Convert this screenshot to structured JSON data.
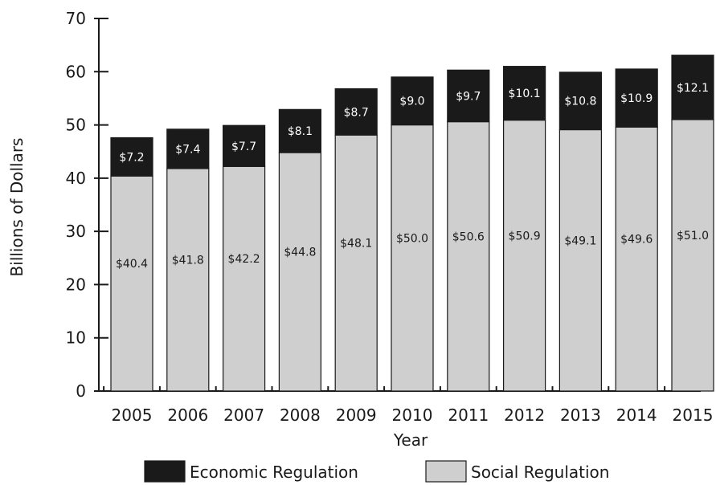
{
  "chart_data": {
    "type": "bar",
    "stacked": true,
    "categories": [
      "2005",
      "2006",
      "2007",
      "2008",
      "2009",
      "2010",
      "2011",
      "2012",
      "2013",
      "2014",
      "2015"
    ],
    "series": [
      {
        "name": "Social Regulation",
        "color": "#cfcfcf",
        "values": [
          40.4,
          41.8,
          42.2,
          44.8,
          48.1,
          50.0,
          50.6,
          50.9,
          49.1,
          49.6,
          51.0
        ],
        "labels": [
          "$40.4",
          "$41.8",
          "$42.2",
          "$44.8",
          "$48.1",
          "$50.0",
          "$50.6",
          "$50.9",
          "$49.1",
          "$49.6",
          "$51.0"
        ]
      },
      {
        "name": "Economic Regulation",
        "color": "#1a1a1a",
        "values": [
          7.2,
          7.4,
          7.7,
          8.1,
          8.7,
          9.0,
          9.7,
          10.1,
          10.8,
          10.9,
          12.1
        ],
        "labels": [
          "$7.2",
          "$7.4",
          "$7.7",
          "$8.1",
          "$8.7",
          "$9.0",
          "$9.7",
          "$10.1",
          "$10.8",
          "$10.9",
          "$12.1"
        ]
      }
    ],
    "xlabel": "Year",
    "ylabel": "Billions of Dollars",
    "ylim": [
      0,
      70
    ],
    "yticks": [
      "0",
      "10",
      "20",
      "30",
      "40",
      "50",
      "60",
      "70"
    ],
    "grid": false,
    "legend": {
      "placement": "bottom",
      "entries": [
        "Economic Regulation",
        "Social Regulation"
      ]
    }
  }
}
